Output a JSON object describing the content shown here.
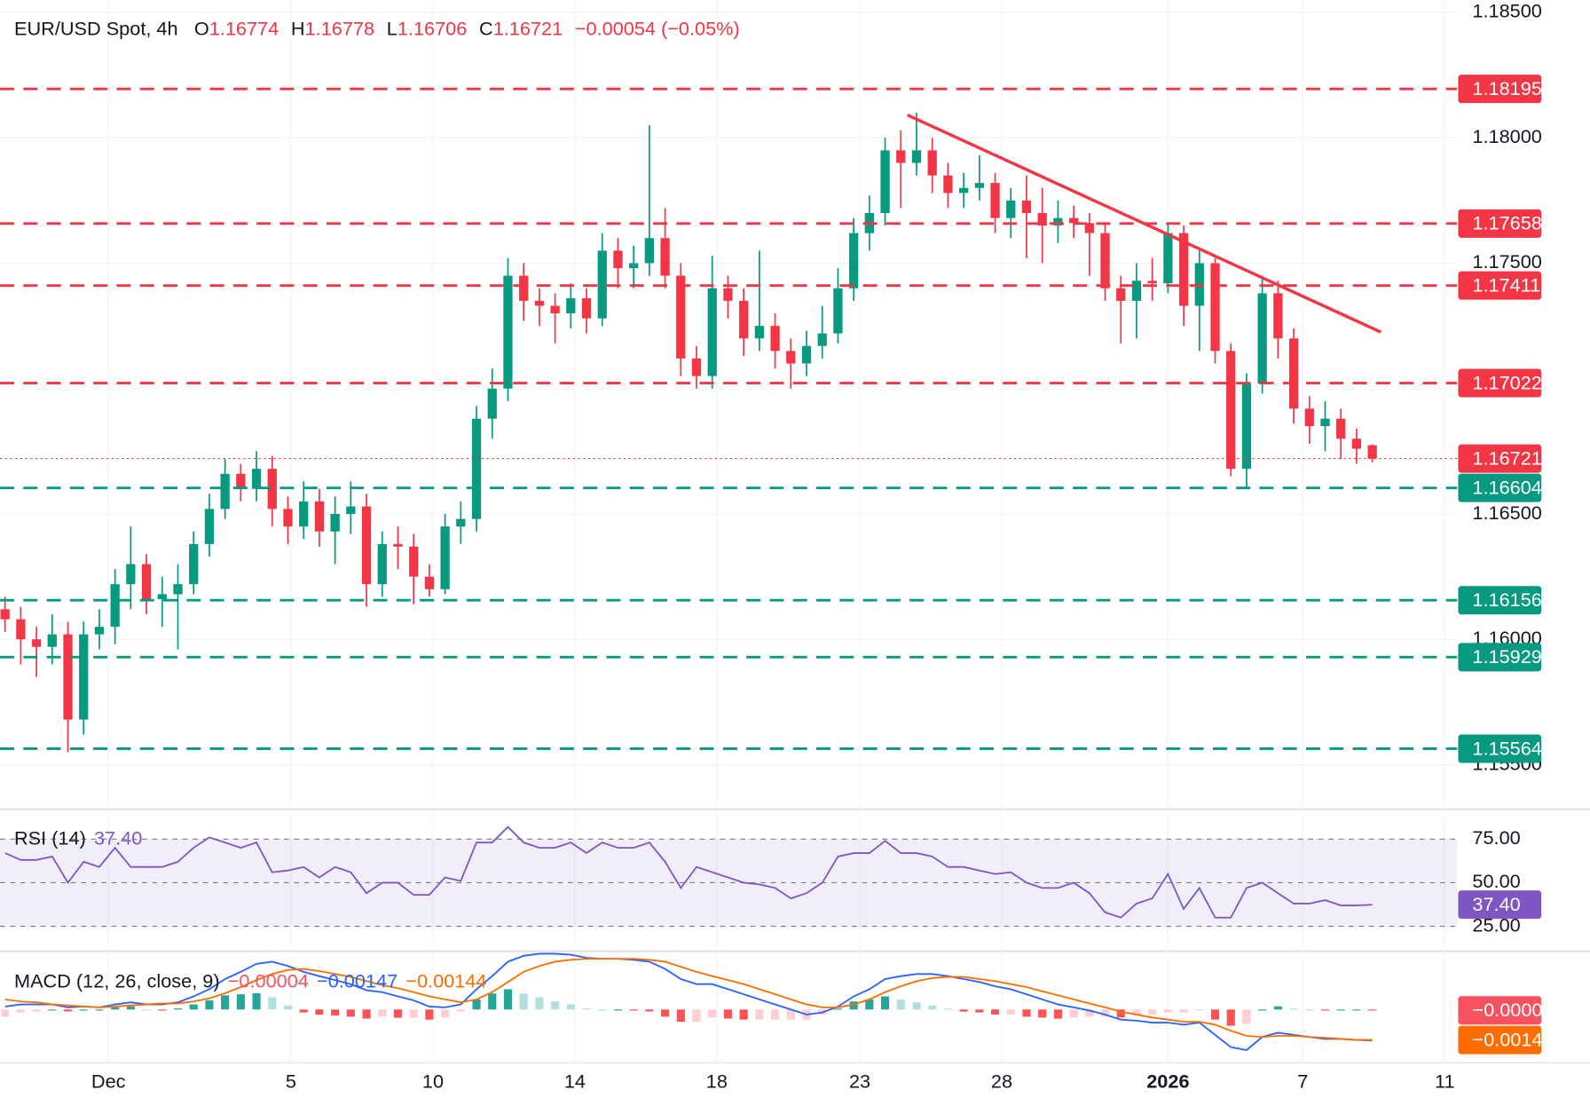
{
  "chart_data": [
    {
      "type": "candlestick",
      "title": "EUR/USD Spot, 4h",
      "ohlc_labels": [
        "O",
        "H",
        "L",
        "C"
      ],
      "change_label": "−0.00054 (−0.05%)",
      "open": [
        1.1612,
        1.1608,
        1.16,
        1.1597,
        1.1602,
        1.1568,
        1.1602,
        1.1605,
        1.1622,
        1.163,
        1.1616,
        1.1618,
        1.1622,
        1.1638,
        1.1652,
        1.1666,
        1.166,
        1.1668,
        1.1652,
        1.1645,
        1.1655,
        1.1643,
        1.165,
        1.1653,
        1.1622,
        1.1638,
        1.1637,
        1.1625,
        1.162,
        1.1645,
        1.1648,
        1.1688,
        1.17,
        1.1745,
        1.1735,
        1.1733,
        1.173,
        1.1736,
        1.1728,
        1.1755,
        1.1748,
        1.175,
        1.176,
        1.1745,
        1.1712,
        1.1705,
        1.174,
        1.1735,
        1.172,
        1.1725,
        1.1715,
        1.171,
        1.1717,
        1.1722,
        1.174,
        1.1762,
        1.177,
        1.1795,
        1.179,
        1.1795,
        1.1785,
        1.1778,
        1.178,
        1.1782,
        1.1768,
        1.1775,
        1.177,
        1.1765,
        1.1768,
        1.1766,
        1.1762,
        1.174,
        1.1735,
        1.1743,
        1.1742,
        1.1762,
        1.1733,
        1.175,
        1.1715,
        1.1668,
        1.1702,
        1.1738,
        1.172,
        1.1692,
        1.1685,
        1.1688,
        1.168,
        1.16774
      ],
      "high": [
        1.1617,
        1.1613,
        1.1605,
        1.161,
        1.1607,
        1.1607,
        1.1612,
        1.1628,
        1.1645,
        1.1634,
        1.1625,
        1.163,
        1.1643,
        1.1658,
        1.1672,
        1.167,
        1.1675,
        1.1673,
        1.1657,
        1.1663,
        1.166,
        1.1657,
        1.1663,
        1.1658,
        1.1643,
        1.1645,
        1.1642,
        1.163,
        1.165,
        1.1655,
        1.1693,
        1.1708,
        1.1752,
        1.175,
        1.174,
        1.1738,
        1.1742,
        1.174,
        1.1762,
        1.176,
        1.1757,
        1.1805,
        1.1772,
        1.175,
        1.1717,
        1.1753,
        1.1745,
        1.174,
        1.1755,
        1.173,
        1.172,
        1.1723,
        1.1733,
        1.1748,
        1.1768,
        1.1777,
        1.18,
        1.1803,
        1.181,
        1.18,
        1.179,
        1.1786,
        1.1793,
        1.1786,
        1.178,
        1.1785,
        1.178,
        1.1775,
        1.1773,
        1.177,
        1.1766,
        1.1745,
        1.175,
        1.1752,
        1.1766,
        1.1765,
        1.1755,
        1.1752,
        1.1718,
        1.1706,
        1.1745,
        1.1743,
        1.1724,
        1.1697,
        1.1695,
        1.1692,
        1.1684,
        1.16778
      ],
      "low": [
        1.1603,
        1.159,
        1.1585,
        1.159,
        1.1555,
        1.1562,
        1.1596,
        1.1598,
        1.1612,
        1.161,
        1.1605,
        1.1596,
        1.1618,
        1.1633,
        1.1648,
        1.1655,
        1.1655,
        1.1645,
        1.1638,
        1.164,
        1.1637,
        1.163,
        1.1642,
        1.1613,
        1.1617,
        1.1628,
        1.1614,
        1.1617,
        1.1618,
        1.1638,
        1.1643,
        1.168,
        1.1695,
        1.1727,
        1.1725,
        1.1718,
        1.1724,
        1.1722,
        1.1725,
        1.174,
        1.174,
        1.1745,
        1.174,
        1.1705,
        1.17,
        1.17,
        1.1728,
        1.1713,
        1.1715,
        1.1708,
        1.17,
        1.1705,
        1.1712,
        1.1718,
        1.1735,
        1.1755,
        1.1765,
        1.1772,
        1.1785,
        1.1778,
        1.1772,
        1.1772,
        1.1775,
        1.1762,
        1.176,
        1.1752,
        1.175,
        1.1758,
        1.176,
        1.1745,
        1.1735,
        1.1718,
        1.172,
        1.1735,
        1.1738,
        1.1725,
        1.1715,
        1.171,
        1.1665,
        1.166,
        1.1698,
        1.1712,
        1.1686,
        1.1678,
        1.1675,
        1.1672,
        1.167,
        1.16706
      ],
      "close": [
        1.1608,
        1.16,
        1.1597,
        1.1602,
        1.1568,
        1.1602,
        1.1605,
        1.1622,
        1.163,
        1.1616,
        1.1618,
        1.1622,
        1.1638,
        1.1652,
        1.1666,
        1.166,
        1.1668,
        1.1652,
        1.1645,
        1.1655,
        1.1643,
        1.165,
        1.1653,
        1.1622,
        1.1638,
        1.1637,
        1.1625,
        1.162,
        1.1645,
        1.1648,
        1.1688,
        1.17,
        1.1745,
        1.1735,
        1.1733,
        1.173,
        1.1736,
        1.1728,
        1.1755,
        1.1748,
        1.175,
        1.176,
        1.1745,
        1.1712,
        1.1705,
        1.174,
        1.1735,
        1.172,
        1.1725,
        1.1715,
        1.171,
        1.1717,
        1.1722,
        1.174,
        1.1762,
        1.177,
        1.1795,
        1.179,
        1.1795,
        1.1785,
        1.1778,
        1.178,
        1.1782,
        1.1768,
        1.1775,
        1.177,
        1.1765,
        1.1768,
        1.1766,
        1.1762,
        1.174,
        1.1735,
        1.1743,
        1.1742,
        1.1762,
        1.1733,
        1.175,
        1.1715,
        1.1668,
        1.1702,
        1.1738,
        1.172,
        1.1692,
        1.1685,
        1.1688,
        1.168,
        1.1676,
        1.16721
      ],
      "up_color": "#089981",
      "down_color": "#f23645",
      "xlim": [
        -0.32,
        92.4
      ],
      "xticks": [
        {
          "value": 6.58,
          "label": "Dec"
        },
        {
          "value": 18.19,
          "label": "5"
        },
        {
          "value": 27.23,
          "label": "10"
        },
        {
          "value": 36.26,
          "label": "14"
        },
        {
          "value": 45.29,
          "label": "18"
        },
        {
          "value": 54.39,
          "label": "23"
        },
        {
          "value": 63.42,
          "label": "28"
        },
        {
          "value": 74.0,
          "label": "2026"
        },
        {
          "value": 82.58,
          "label": "7"
        },
        {
          "value": 91.61,
          "label": "11"
        }
      ],
      "ylim": [
        1.15333,
        1.18549
      ],
      "yticks": [
        {
          "value": 1.155,
          "label": "1.15500"
        },
        {
          "value": 1.16,
          "label": "1.16000"
        },
        {
          "value": 1.165,
          "label": "1.16500"
        },
        {
          "value": 1.175,
          "label": "1.17500"
        },
        {
          "value": 1.18,
          "label": "1.18000"
        },
        {
          "value": 1.185,
          "label": "1.18500"
        }
      ],
      "grid": true,
      "levels": [
        {
          "value": 1.18195,
          "color": "#f23645"
        },
        {
          "value": 1.17658,
          "color": "#f23645"
        },
        {
          "value": 1.17411,
          "color": "#f23645"
        },
        {
          "value": 1.17022,
          "color": "#f23645"
        },
        {
          "value": 1.16604,
          "color": "#089981"
        },
        {
          "value": 1.16156,
          "color": "#089981"
        },
        {
          "value": 1.15929,
          "color": "#089981"
        },
        {
          "value": 1.15564,
          "color": "#089981"
        }
      ],
      "trendline": {
        "x": [
          57.42,
          87.55
        ],
        "y": [
          1.18091,
          1.17225
        ],
        "color": "#f23645"
      }
    },
    {
      "type": "line",
      "title": "RSI (14)",
      "color": "#7e57c2",
      "value_label": "37.40",
      "values": [
        67,
        63,
        63,
        65,
        50,
        62,
        59,
        70,
        59,
        59,
        59,
        62,
        70,
        76,
        73,
        70,
        73,
        56,
        57,
        59,
        53,
        59,
        56,
        44,
        50,
        50,
        43,
        43,
        53,
        51,
        73,
        73,
        82,
        73,
        70,
        70,
        73,
        67,
        73,
        70,
        70,
        73,
        62,
        47,
        59,
        56,
        53,
        50,
        49,
        47,
        41,
        44,
        50,
        65,
        67,
        67,
        74,
        67,
        67,
        65,
        59,
        59,
        57,
        55,
        56,
        50,
        47,
        47,
        50,
        44,
        33,
        30,
        38,
        41,
        55,
        35,
        47,
        30,
        30,
        47,
        50,
        44,
        38,
        38,
        40,
        37,
        37,
        37.4
      ],
      "ylim": [
        12.2,
        90.7
      ],
      "yticks": [
        {
          "value": 75,
          "label": "75.00"
        },
        {
          "value": 50,
          "label": "50.00"
        },
        {
          "value": 25,
          "label": "25.00"
        }
      ],
      "band": [
        25,
        75
      ]
    },
    {
      "type": "macd",
      "title": "MACD (12, 26, close, 9)",
      "ylim": [
        -0.0024,
        0.00264
      ],
      "histogram": {
        "value_label": "−0.00004",
        "color": "#f7525f",
        "values": [
          -0.00034,
          -0.00014,
          -0.0001,
          0,
          -9e-05,
          0,
          0,
          0.0001,
          0.00015,
          0,
          -5e-05,
          5e-05,
          0.00024,
          0.00043,
          0.00067,
          0.00072,
          0.00077,
          0.00058,
          0.00019,
          -0.00014,
          -0.00024,
          -0.00029,
          -0.00034,
          -0.00043,
          -0.00033,
          -0.00039,
          -0.00039,
          -0.00048,
          -0.00038,
          -0.0001,
          0.00048,
          0.00076,
          0.00096,
          0.00076,
          0.00058,
          0.00038,
          0.00024,
          5e-05,
          0,
          0,
          -5e-05,
          -9e-05,
          -0.00034,
          -0.00058,
          -0.00058,
          -0.00038,
          -0.00043,
          -0.00048,
          -0.00048,
          -0.00048,
          -0.00048,
          -0.00048,
          -0.00024,
          4e-05,
          0.00038,
          0.00048,
          0.00062,
          0.00048,
          0.00034,
          0.00019,
          4e-05,
          -0.0001,
          -0.00014,
          -0.00024,
          -0.00024,
          -0.00034,
          -0.00038,
          -0.00043,
          -0.00038,
          -0.00034,
          -0.00034,
          -0.00038,
          -0.00029,
          -0.00024,
          -0.00014,
          -0.00014,
          -4e-05,
          -0.00048,
          -0.00077,
          -0.00067,
          0,
          0.00015,
          5e-05,
          0,
          -5e-05,
          0,
          0,
          -4e-05
        ]
      },
      "macd": {
        "value_label": "−0.00147",
        "color": "#2962ff",
        "values": [
          0.00014,
          0.00024,
          0.00024,
          0.00024,
          0.0001,
          0.00014,
          0.0001,
          0.00024,
          0.00034,
          0.00024,
          0.00024,
          0.00034,
          0.00062,
          0.00096,
          0.00144,
          0.00178,
          0.00216,
          0.00226,
          0.00206,
          0.00178,
          0.00158,
          0.00139,
          0.0012,
          0.00091,
          0.00082,
          0.00062,
          0.00043,
          0.00014,
          0.0001,
          0.00024,
          0.00096,
          0.00158,
          0.00226,
          0.00254,
          0.00264,
          0.00264,
          0.00259,
          0.00245,
          0.0024,
          0.0024,
          0.00235,
          0.00226,
          0.00192,
          0.00144,
          0.0012,
          0.0012,
          0.00096,
          0.00072,
          0.00048,
          0.00024,
          0,
          -0.00024,
          -0.00014,
          0.00014,
          0.00062,
          0.00096,
          0.00144,
          0.00158,
          0.00168,
          0.00168,
          0.00158,
          0.00144,
          0.0013,
          0.0011,
          0.00096,
          0.00072,
          0.00048,
          0.00024,
          0.0001,
          -5e-05,
          -0.00024,
          -0.00048,
          -0.00053,
          -0.00062,
          -0.00062,
          -0.00072,
          -0.00062,
          -0.0012,
          -0.00178,
          -0.00192,
          -0.0013,
          -0.0011,
          -0.0012,
          -0.0013,
          -0.00139,
          -0.00139,
          -0.00144,
          -0.00147
        ]
      },
      "signal": {
        "value_label": "−0.00144",
        "color": "#ff6d00",
        "values": [
          0.00048,
          0.00038,
          0.00034,
          0.00024,
          0.00019,
          0.00014,
          0.0001,
          0.00014,
          0.00019,
          0.00024,
          0.00029,
          0.00029,
          0.00038,
          0.00053,
          0.00077,
          0.00106,
          0.00139,
          0.00168,
          0.00187,
          0.00192,
          0.00182,
          0.00168,
          0.00154,
          0.00134,
          0.00115,
          0.00101,
          0.00082,
          0.00062,
          0.00048,
          0.00034,
          0.00048,
          0.00082,
          0.0013,
          0.00178,
          0.00206,
          0.00226,
          0.00235,
          0.0024,
          0.0024,
          0.0024,
          0.0024,
          0.00235,
          0.00226,
          0.00202,
          0.00178,
          0.00158,
          0.00139,
          0.0012,
          0.00096,
          0.00072,
          0.00048,
          0.00024,
          0.0001,
          0.0001,
          0.00024,
          0.00048,
          0.00082,
          0.0011,
          0.00134,
          0.00149,
          0.00154,
          0.00154,
          0.00144,
          0.00134,
          0.0012,
          0.00106,
          0.00086,
          0.00067,
          0.00048,
          0.00029,
          0.0001,
          -0.0001,
          -0.00024,
          -0.00038,
          -0.00048,
          -0.00058,
          -0.00058,
          -0.00072,
          -0.00101,
          -0.00125,
          -0.0013,
          -0.00125,
          -0.00125,
          -0.0013,
          -0.00134,
          -0.00139,
          -0.00144,
          -0.00144
        ]
      }
    }
  ]
}
